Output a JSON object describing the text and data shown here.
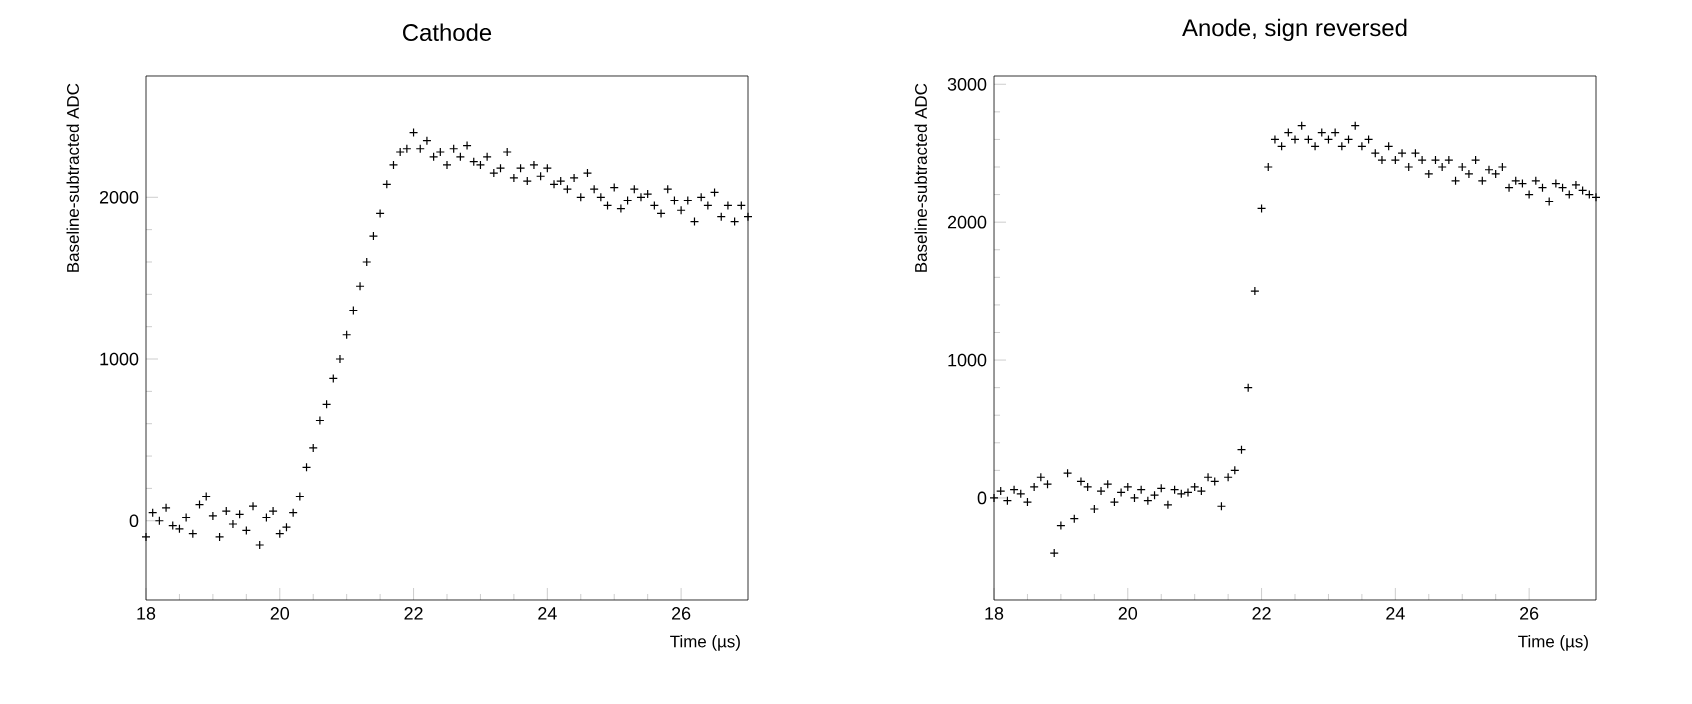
{
  "chart_data": [
    {
      "type": "scatter",
      "title": "Cathode",
      "xlabel": "Time (µs)",
      "ylabel": "Baseline-subtracted ADC",
      "marker": "cross",
      "grid": false,
      "xlim": [
        18,
        27
      ],
      "ylim": [
        -490,
        2750
      ],
      "xticks": [
        18,
        20,
        22,
        24,
        26
      ],
      "yticks": [
        0,
        1000,
        2000
      ],
      "series": [
        {
          "color": "#000000",
          "x": [
            18.0,
            18.1,
            18.2,
            18.3,
            18.4,
            18.5,
            18.6,
            18.7,
            18.8,
            18.9,
            19.0,
            19.1,
            19.2,
            19.3,
            19.4,
            19.5,
            19.6,
            19.7,
            19.8,
            19.9,
            20.0,
            20.1,
            20.2,
            20.3,
            20.4,
            20.5,
            20.6,
            20.7,
            20.8,
            20.9,
            21.0,
            21.1,
            21.2,
            21.3,
            21.4,
            21.5,
            21.6,
            21.7,
            21.8,
            21.9,
            22.0,
            22.1,
            22.2,
            22.3,
            22.4,
            22.5,
            22.6,
            22.7,
            22.8,
            22.9,
            23.0,
            23.1,
            23.2,
            23.3,
            23.4,
            23.5,
            23.6,
            23.7,
            23.8,
            23.9,
            24.0,
            24.1,
            24.2,
            24.3,
            24.4,
            24.5,
            24.6,
            24.7,
            24.8,
            24.9,
            25.0,
            25.1,
            25.2,
            25.3,
            25.4,
            25.5,
            25.6,
            25.7,
            25.8,
            25.9,
            26.0,
            26.1,
            26.2,
            26.3,
            26.4,
            26.5,
            26.6,
            26.7,
            26.8,
            26.9,
            27.0
          ],
          "values": [
            -100,
            50,
            0,
            80,
            -30,
            -50,
            20,
            -80,
            100,
            150,
            30,
            -100,
            60,
            -20,
            40,
            -60,
            90,
            -150,
            20,
            60,
            -80,
            -40,
            50,
            150,
            330,
            450,
            620,
            720,
            880,
            1000,
            1150,
            1300,
            1450,
            1600,
            1760,
            1900,
            2080,
            2200,
            2280,
            2300,
            2400,
            2300,
            2350,
            2250,
            2280,
            2200,
            2300,
            2250,
            2320,
            2220,
            2200,
            2250,
            2150,
            2180,
            2280,
            2120,
            2180,
            2100,
            2200,
            2130,
            2180,
            2080,
            2100,
            2050,
            2120,
            2000,
            2150,
            2050,
            2000,
            1950,
            2060,
            1930,
            1980,
            2050,
            2000,
            2020,
            1950,
            1900,
            2050,
            1980,
            1920,
            1980,
            1850,
            2000,
            1950,
            2030,
            1880,
            1950,
            1850,
            1950,
            1880
          ]
        }
      ]
    },
    {
      "type": "scatter",
      "title": "Anode, sign reversed",
      "xlabel": "Time (µs)",
      "ylabel": "Baseline-subtracted ADC",
      "marker": "cross",
      "grid": false,
      "xlim": [
        18,
        27
      ],
      "ylim": [
        -740,
        3060
      ],
      "xticks": [
        18,
        20,
        22,
        24,
        26
      ],
      "yticks": [
        0,
        1000,
        2000,
        3000
      ],
      "series": [
        {
          "color": "#000000",
          "x": [
            18.0,
            18.1,
            18.2,
            18.3,
            18.4,
            18.5,
            18.6,
            18.7,
            18.8,
            18.9,
            19.0,
            19.1,
            19.2,
            19.3,
            19.4,
            19.5,
            19.6,
            19.7,
            19.8,
            19.9,
            20.0,
            20.1,
            20.2,
            20.3,
            20.4,
            20.5,
            20.6,
            20.7,
            20.8,
            20.9,
            21.0,
            21.1,
            21.2,
            21.3,
            21.4,
            21.5,
            21.6,
            21.7,
            21.8,
            21.9,
            22.0,
            22.1,
            22.2,
            22.3,
            22.4,
            22.5,
            22.6,
            22.7,
            22.8,
            22.9,
            23.0,
            23.1,
            23.2,
            23.3,
            23.4,
            23.5,
            23.6,
            23.7,
            23.8,
            23.9,
            24.0,
            24.1,
            24.2,
            24.3,
            24.4,
            24.5,
            24.6,
            24.7,
            24.8,
            24.9,
            25.0,
            25.1,
            25.2,
            25.3,
            25.4,
            25.5,
            25.6,
            25.7,
            25.8,
            25.9,
            26.0,
            26.1,
            26.2,
            26.3,
            26.4,
            26.5,
            26.6,
            26.7,
            26.8,
            26.9,
            27.0
          ],
          "values": [
            0,
            50,
            -20,
            60,
            30,
            -30,
            80,
            150,
            100,
            -400,
            -200,
            180,
            -150,
            120,
            80,
            -80,
            50,
            100,
            -30,
            40,
            80,
            0,
            60,
            -20,
            20,
            70,
            -50,
            60,
            30,
            40,
            80,
            50,
            150,
            120,
            -60,
            150,
            200,
            350,
            800,
            1500,
            2100,
            2400,
            2600,
            2550,
            2650,
            2600,
            2700,
            2600,
            2550,
            2650,
            2600,
            2650,
            2550,
            2600,
            2700,
            2550,
            2600,
            2500,
            2450,
            2550,
            2450,
            2500,
            2400,
            2500,
            2450,
            2350,
            2450,
            2400,
            2450,
            2300,
            2400,
            2350,
            2450,
            2300,
            2380,
            2350,
            2400,
            2250,
            2300,
            2280,
            2200,
            2300,
            2250,
            2150,
            2280,
            2250,
            2200,
            2270,
            2230,
            2200,
            2180
          ]
        }
      ]
    }
  ]
}
